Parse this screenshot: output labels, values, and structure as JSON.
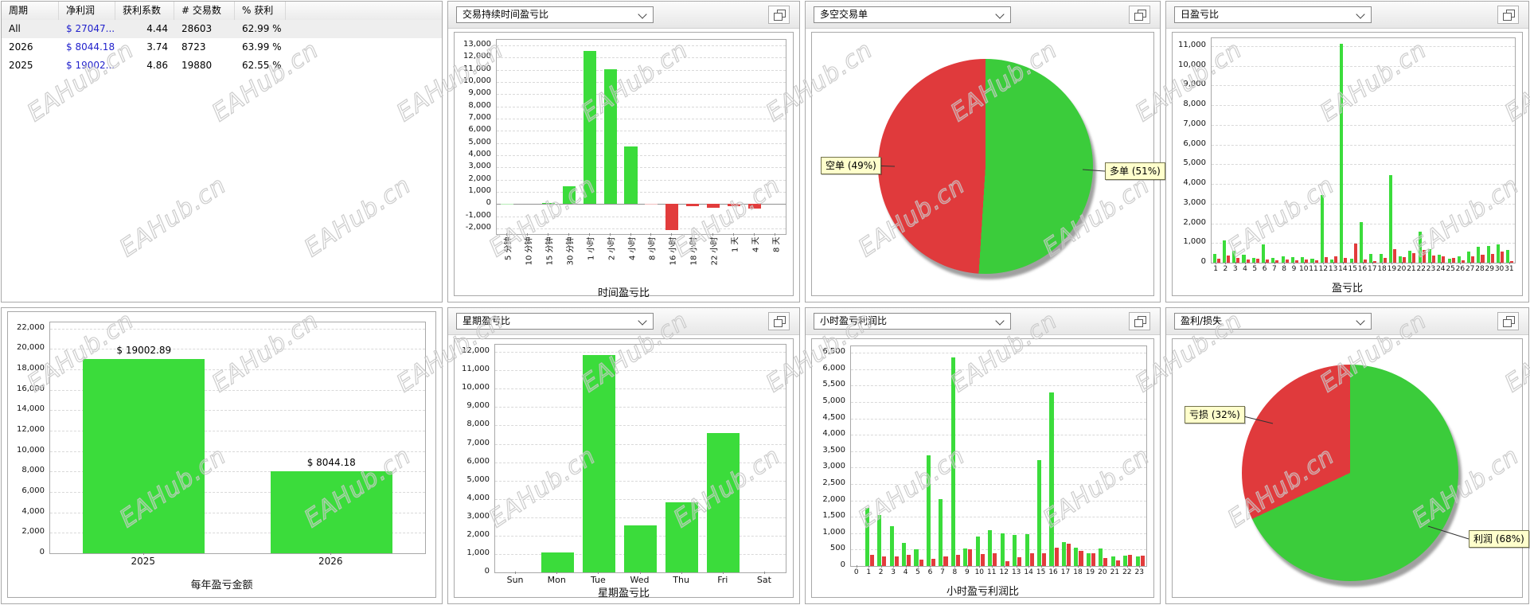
{
  "watermark_text": "EAHub.cn",
  "colors": {
    "bar_green": "#3bdc3b",
    "bar_green_light": "#b7ecb7",
    "bar_red": "#e23c3c",
    "bar_red_light": "#f3bebe",
    "pie_green": "#3bcc3b",
    "pie_red": "#e03a3c",
    "money_blue": "#2222cc",
    "callout_bg": "#ffffcc"
  },
  "summary_table": {
    "headers": [
      "周期",
      "净利润",
      "获利系数",
      "# 交易数",
      "% 获利"
    ],
    "rows": [
      {
        "period": "All",
        "net_profit": "$ 27047...",
        "profit_factor": "4.44",
        "trades": "28603",
        "win_rate": "62.99 %",
        "selected": true
      },
      {
        "period": "2026",
        "net_profit": "$ 8044.18",
        "profit_factor": "3.74",
        "trades": "8723",
        "win_rate": "63.99 %",
        "selected": false
      },
      {
        "period": "2025",
        "net_profit": "$ 19002...",
        "profit_factor": "4.86",
        "trades": "19880",
        "win_rate": "62.55 %",
        "selected": false
      }
    ]
  },
  "dropdowns": {
    "duration": "交易持续时间盈亏比",
    "long_short": "多空交易单",
    "daily": "日盈亏比",
    "weekday": "星期盈亏比",
    "hourly": "小时盈亏利润比",
    "profit_loss": "盈利/损失"
  },
  "chart_data": [
    {
      "id": "duration",
      "type": "bar",
      "xlabel": "时间盈亏比",
      "categories": [
        "5 分钟",
        "10 分钟",
        "15 分钟",
        "30 分钟",
        "1 小时",
        "2 小时",
        "4 小时",
        "8 小时",
        "16 小时",
        "18 小时",
        "22 小时",
        "1 天",
        "4 天",
        "8 天"
      ],
      "values": [
        20,
        0,
        60,
        1450,
        12540,
        11030,
        4740,
        -60,
        -2100,
        -200,
        -270,
        -160,
        -340,
        0
      ],
      "bar_colors": [
        "#b7ecb7",
        "",
        "#3bdc3b",
        "#3bdc3b",
        "#3bdc3b",
        "#3bdc3b",
        "#3bdc3b",
        "#f3bebe",
        "#e23c3c",
        "#e23c3c",
        "#e23c3c",
        "#e23c3c",
        "#e23c3c",
        ""
      ],
      "ylim": [
        -2450,
        13450
      ],
      "ystep": 1000,
      "grid": true
    },
    {
      "id": "long_short",
      "type": "pie",
      "slices": [
        {
          "label": "多单",
          "pct": 51,
          "color": "#3bcc3b"
        },
        {
          "label": "空单",
          "pct": 49,
          "color": "#e03a3c"
        }
      ],
      "callouts": [
        {
          "text": "空单 (49%)",
          "side": "left"
        },
        {
          "text": "多单 (51%)",
          "side": "right"
        }
      ]
    },
    {
      "id": "daily",
      "type": "bar",
      "xlabel": "盈亏比",
      "categories": [
        "1",
        "2",
        "3",
        "4",
        "5",
        "6",
        "7",
        "8",
        "9",
        "10",
        "11",
        "12",
        "13",
        "14",
        "15",
        "16",
        "17",
        "18",
        "19",
        "20",
        "21",
        "22",
        "23",
        "24",
        "25",
        "26",
        "27",
        "28",
        "29",
        "30",
        "31"
      ],
      "series": [
        {
          "name": "profit",
          "color": "#3bdc3b",
          "values": [
            450,
            1150,
            620,
            400,
            230,
            950,
            240,
            330,
            290,
            290,
            185,
            3450,
            160,
            11130,
            200,
            2070,
            430,
            440,
            4450,
            330,
            600,
            1560,
            670,
            400,
            200,
            330,
            560,
            800,
            830,
            930,
            640
          ]
        },
        {
          "name": "loss",
          "color": "#e23c3c",
          "values": [
            200,
            380,
            250,
            160,
            210,
            150,
            130,
            160,
            105,
            160,
            130,
            270,
            330,
            240,
            960,
            160,
            100,
            240,
            700,
            270,
            470,
            640,
            370,
            330,
            240,
            130,
            330,
            400,
            440,
            560,
            70
          ]
        }
      ],
      "ylim": [
        0,
        11400
      ],
      "ystep": 1000,
      "grid": true
    },
    {
      "id": "yearly",
      "type": "bar",
      "xlabel": "每年盈亏金额",
      "categories": [
        "2025",
        "2026"
      ],
      "values": [
        19002.89,
        8044.18
      ],
      "value_labels": [
        "$ 19002.89",
        "$ 8044.18"
      ],
      "bar_colors": [
        "#3bdc3b",
        "#3bdc3b"
      ],
      "ylim": [
        0,
        22600
      ],
      "ystep": 2000,
      "grid": true
    },
    {
      "id": "weekday",
      "type": "bar",
      "xlabel": "星期盈亏比",
      "categories": [
        "Sun",
        "Mon",
        "Tue",
        "Wed",
        "Thu",
        "Fri",
        "Sat"
      ],
      "values": [
        0,
        1100,
        11820,
        2550,
        3830,
        7580,
        0
      ],
      "bar_colors": [
        "#3bdc3b",
        "#3bdc3b",
        "#3bdc3b",
        "#3bdc3b",
        "#3bdc3b",
        "#3bdc3b",
        "#3bdc3b"
      ],
      "ylim": [
        0,
        12400
      ],
      "ystep": 1000,
      "grid": true
    },
    {
      "id": "hourly",
      "type": "bar",
      "xlabel": "小时盈亏利润比",
      "categories": [
        "0",
        "1",
        "2",
        "3",
        "4",
        "5",
        "6",
        "7",
        "8",
        "9",
        "10",
        "11",
        "12",
        "13",
        "14",
        "15",
        "16",
        "17",
        "18",
        "19",
        "20",
        "21",
        "22",
        "23"
      ],
      "series": [
        {
          "name": "profit",
          "color": "#3bdc3b",
          "values": [
            0,
            1780,
            1550,
            1210,
            710,
            520,
            3370,
            2050,
            6350,
            535,
            900,
            1095,
            1000,
            955,
            965,
            3235,
            5280,
            725,
            570,
            390,
            530,
            290,
            310,
            290
          ]
        },
        {
          "name": "loss",
          "color": "#e23c3c",
          "values": [
            0,
            345,
            280,
            300,
            340,
            190,
            230,
            300,
            350,
            520,
            360,
            390,
            140,
            270,
            400,
            400,
            550,
            680,
            450,
            380,
            240,
            170,
            350,
            320
          ]
        }
      ],
      "ylim": [
        0,
        6700
      ],
      "ystep": 500,
      "grid": true
    },
    {
      "id": "profit_loss",
      "type": "pie",
      "slices": [
        {
          "label": "利润",
          "pct": 68,
          "color": "#3bcc3b"
        },
        {
          "label": "亏损",
          "pct": 32,
          "color": "#e03a3c"
        }
      ],
      "callouts": [
        {
          "text": "亏损 (32%)",
          "side": "left"
        },
        {
          "text": "利润 (68%)",
          "side": "right"
        }
      ]
    }
  ]
}
